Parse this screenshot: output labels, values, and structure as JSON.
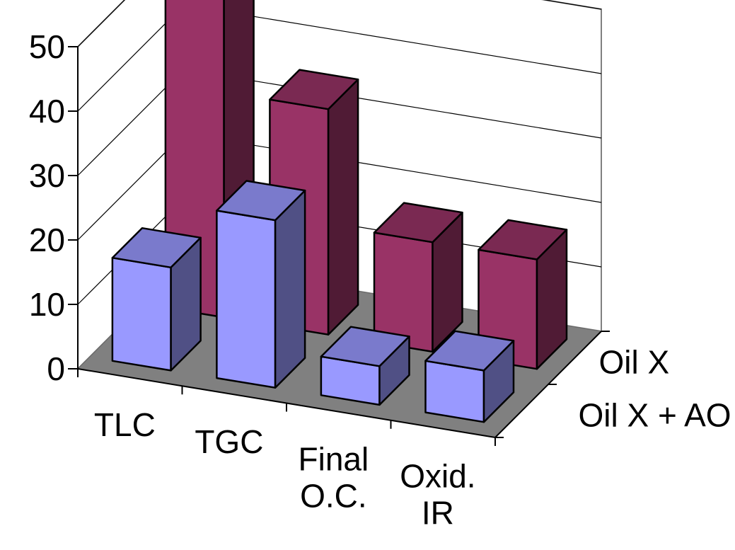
{
  "chart_data": {
    "type": "bar",
    "style": "3d-clustered-rows",
    "categories": [
      "TLC",
      "TGC",
      "Final\nO.C.",
      "Oxid.\nIR"
    ],
    "series": [
      {
        "name": "Oil X",
        "values": [
          51,
          35,
          17,
          17
        ],
        "color": "#993366"
      },
      {
        "name": "Oil X + AO",
        "values": [
          16,
          26,
          6,
          8
        ],
        "color": "#9999FF"
      }
    ],
    "ylim": [
      0,
      50
    ],
    "yticks": [
      0,
      10,
      20,
      30,
      40,
      50
    ],
    "grid": true,
    "floor_color": "#808080",
    "title": "",
    "xlabel": "",
    "ylabel": ""
  }
}
